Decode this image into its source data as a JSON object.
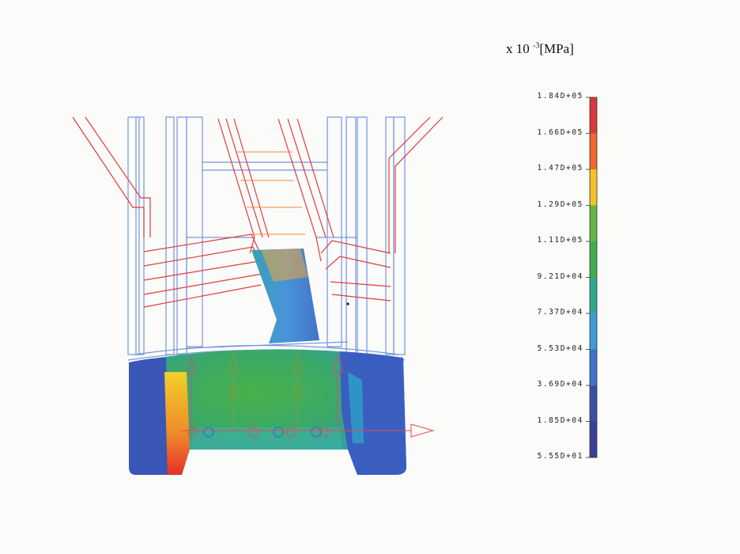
{
  "units": {
    "prefix": "x 10",
    "exponent": "-3",
    "unit": "[MPa]"
  },
  "legend": {
    "labels": [
      "1.84D+05",
      "1.66D+05",
      "1.47D+05",
      "1.29D+05",
      "1.11D+05",
      "9.21D+04",
      "7.37D+04",
      "5.53D+04",
      "3.69D+04",
      "1.85D+04",
      "5.55D+01"
    ],
    "colors": [
      "#d73a3a",
      "#ec6a2a",
      "#f4c22a",
      "#62b542",
      "#3fae4e",
      "#2ea88a",
      "#3f9bd6",
      "#3b74c8",
      "#3c4fa6",
      "#3b3f96"
    ]
  },
  "colors": {
    "wire_red": "#e23b3b",
    "wire_blue": "#6f8fd9",
    "wire_orange": "#ef8a3a",
    "stress_high": "#ef2a2a",
    "stress_mid": "#3faa50",
    "stress_low": "#3e56b0"
  }
}
